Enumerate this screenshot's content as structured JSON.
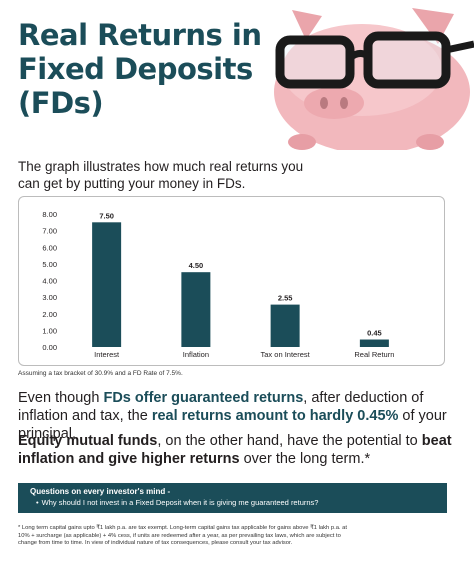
{
  "title_lines": [
    "Real Returns in",
    "Fixed Deposits",
    "(FDs)"
  ],
  "intro": "The graph illustrates how much real returns you can get by putting your money in FDs.",
  "chart_data": {
    "type": "bar",
    "categories": [
      "Interest",
      "Inflation",
      "Tax on Interest",
      "Real Return"
    ],
    "values": [
      7.5,
      4.5,
      2.55,
      0.45
    ],
    "value_labels": [
      "7.50",
      "4.50",
      "2.55",
      "0.45"
    ],
    "y_ticks": [
      "8.00",
      "7.00",
      "6.00",
      "5.00",
      "4.00",
      "3.00",
      "2.00",
      "1.00",
      "0.00"
    ],
    "ylim": [
      0,
      8
    ],
    "bar_color": "#1b4d59",
    "grid": false
  },
  "chart_footnote": "Assuming a tax bracket of 30.9% and a FD Rate of 7.5%.",
  "para1": {
    "p1": "Even though ",
    "b1": "FDs offer guaranteed returns",
    "p2": ", after deduction of inflation and tax, the ",
    "b2": "real returns amount to hardly 0.45%",
    "p3": " of your principal."
  },
  "para2": {
    "b1": "Equity mutual funds",
    "p1": ", on the other hand, have the potential to ",
    "b2": "beat inflation and give higher returns",
    "p2": " over the long term.*"
  },
  "questions": {
    "title": "Questions on every investor's mind -",
    "bullet": "•",
    "item": "Why should I not invest in a Fixed Deposit when it is giving me guaranteed returns?"
  },
  "disclaimer": "* Long term capital gains upto ₹1 lakh p.a. are tax exempt. Long-term capital gains tax applicable for gains above ₹1 lakh p.a. at 10% + surcharge (as applicable) + 4% cess, if units are redeemed after a year, as per prevailing tax laws, which are subject to change from time to time. In view of individual nature of tax consequences, please consult your tax advisor.",
  "colors": {
    "teal": "#1b4d59",
    "pig_pink": "#f2b8bd",
    "glasses": "#1a1a1a"
  }
}
